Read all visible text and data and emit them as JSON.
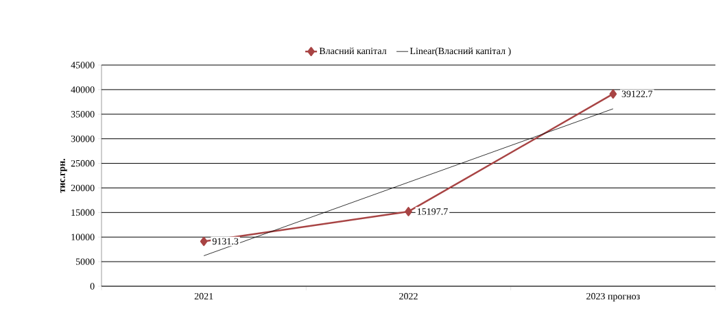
{
  "chart_data": {
    "type": "line",
    "ylabel": "тис.грн.",
    "categories": [
      "2021",
      "2022",
      "2023 прогноз"
    ],
    "series": [
      {
        "name": "Власний капітал",
        "color": "#a84444",
        "values": [
          9131.3,
          15197.7,
          39122.7
        ],
        "marker": "diamond",
        "value_labels": [
          "9131.3",
          "15197.7",
          "39122.7"
        ]
      },
      {
        "name": "Linear(Власний капітал )",
        "type": "line",
        "color": "#000000",
        "values": [
          6200,
          21150,
          36100
        ],
        "marker": "none"
      }
    ],
    "ylim": [
      0,
      45000
    ],
    "yticks": [
      0,
      5000,
      10000,
      15000,
      20000,
      25000,
      30000,
      35000,
      40000,
      45000
    ],
    "grid": "y",
    "legend": "top"
  }
}
